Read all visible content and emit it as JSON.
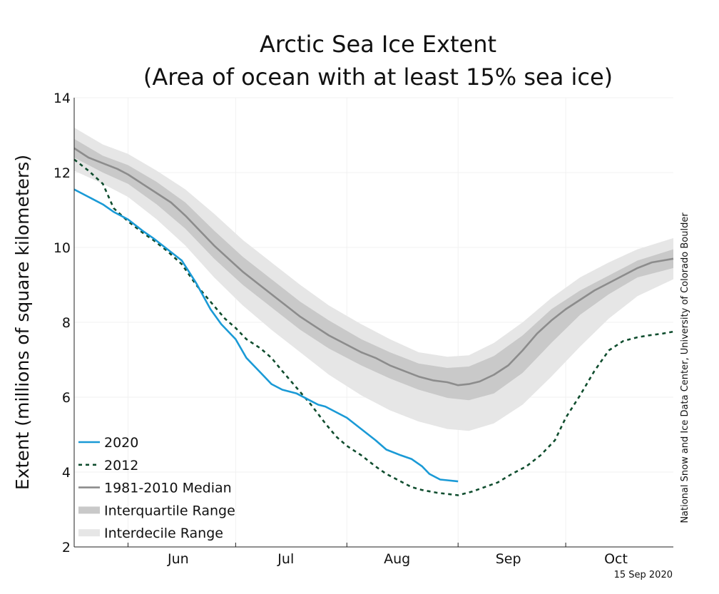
{
  "chart_data": {
    "type": "line",
    "title": "Arctic Sea Ice Extent",
    "subtitle": "(Area of ocean with at least 15% sea ice)",
    "ylabel": "Extent (millions of square kilometers)",
    "xlabel": "",
    "ylim": [
      2,
      14
    ],
    "yticks": [
      "2",
      "4",
      "6",
      "8",
      "10",
      "12",
      "14"
    ],
    "xlim": [
      "2020-05-17",
      "2020-10-31"
    ],
    "xticks": [
      "Jun",
      "Jul",
      "Aug",
      "Sep",
      "Oct"
    ],
    "grid": true,
    "legend_position": "bottom-left",
    "credit": "National Snow and Ice Data Center, University of Colorado Boulder",
    "date_stamp": "15 Sep 2020",
    "series": [
      {
        "name": "2020",
        "style": "solid",
        "color": "#1a9ad6",
        "x": [
          "2020-05-17",
          "2020-05-21",
          "2020-05-25",
          "2020-05-28",
          "2020-06-01",
          "2020-06-05",
          "2020-06-08",
          "2020-06-12",
          "2020-06-16",
          "2020-06-20",
          "2020-06-24",
          "2020-06-27",
          "2020-07-01",
          "2020-07-04",
          "2020-07-08",
          "2020-07-11",
          "2020-07-14",
          "2020-07-18",
          "2020-07-22",
          "2020-07-24",
          "2020-07-26",
          "2020-07-29",
          "2020-08-01",
          "2020-08-05",
          "2020-08-09",
          "2020-08-12",
          "2020-08-16",
          "2020-08-19",
          "2020-08-22",
          "2020-08-24",
          "2020-08-27",
          "2020-08-29",
          "2020-09-01"
        ],
        "y": [
          11.55,
          11.35,
          11.15,
          10.95,
          10.75,
          10.45,
          10.25,
          9.95,
          9.65,
          9.05,
          8.35,
          7.95,
          7.55,
          7.05,
          6.65,
          6.35,
          6.2,
          6.1,
          5.9,
          5.8,
          5.75,
          5.6,
          5.45,
          5.15,
          4.85,
          4.6,
          4.45,
          4.35,
          4.15,
          3.95,
          3.8,
          3.78,
          3.75
        ]
      },
      {
        "name": "2012",
        "style": "dashed",
        "color": "#0f4d2e",
        "x": [
          "2020-05-17",
          "2020-05-21",
          "2020-05-25",
          "2020-05-28",
          "2020-06-01",
          "2020-06-05",
          "2020-06-08",
          "2020-06-12",
          "2020-06-16",
          "2020-06-20",
          "2020-06-24",
          "2020-06-28",
          "2020-07-01",
          "2020-07-04",
          "2020-07-08",
          "2020-07-11",
          "2020-07-14",
          "2020-07-18",
          "2020-07-22",
          "2020-07-26",
          "2020-07-29",
          "2020-08-01",
          "2020-08-05",
          "2020-08-09",
          "2020-08-12",
          "2020-08-16",
          "2020-08-19",
          "2020-08-22",
          "2020-08-26",
          "2020-09-01",
          "2020-09-05",
          "2020-09-09",
          "2020-09-12",
          "2020-09-16",
          "2020-09-20",
          "2020-09-24",
          "2020-09-28",
          "2020-10-01",
          "2020-10-05",
          "2020-10-09",
          "2020-10-13",
          "2020-10-17",
          "2020-10-21",
          "2020-10-24",
          "2020-10-28",
          "2020-10-31"
        ],
        "y": [
          12.35,
          12.05,
          11.7,
          11.05,
          10.7,
          10.4,
          10.2,
          9.9,
          9.55,
          9.0,
          8.55,
          8.1,
          7.85,
          7.55,
          7.3,
          7.05,
          6.7,
          6.25,
          5.8,
          5.3,
          4.95,
          4.7,
          4.45,
          4.15,
          3.95,
          3.75,
          3.6,
          3.52,
          3.45,
          3.38,
          3.48,
          3.62,
          3.72,
          3.95,
          4.15,
          4.45,
          4.85,
          5.45,
          6.05,
          6.7,
          7.25,
          7.5,
          7.6,
          7.65,
          7.7,
          7.75
        ]
      },
      {
        "name": "1981-2010 Median",
        "style": "solid",
        "color": "#8c8c8c",
        "x": [
          "2020-05-17",
          "2020-05-21",
          "2020-05-25",
          "2020-05-29",
          "2020-06-01",
          "2020-06-05",
          "2020-06-09",
          "2020-06-13",
          "2020-06-17",
          "2020-06-21",
          "2020-06-25",
          "2020-06-29",
          "2020-07-03",
          "2020-07-07",
          "2020-07-11",
          "2020-07-15",
          "2020-07-19",
          "2020-07-23",
          "2020-07-27",
          "2020-08-01",
          "2020-08-05",
          "2020-08-09",
          "2020-08-13",
          "2020-08-17",
          "2020-08-21",
          "2020-08-25",
          "2020-08-29",
          "2020-09-01",
          "2020-09-04",
          "2020-09-07",
          "2020-09-11",
          "2020-09-15",
          "2020-09-19",
          "2020-09-23",
          "2020-09-27",
          "2020-10-01",
          "2020-10-05",
          "2020-10-09",
          "2020-10-13",
          "2020-10-17",
          "2020-10-21",
          "2020-10-25",
          "2020-10-31"
        ],
        "y": [
          12.65,
          12.4,
          12.25,
          12.1,
          11.95,
          11.7,
          11.45,
          11.2,
          10.85,
          10.45,
          10.05,
          9.7,
          9.35,
          9.05,
          8.75,
          8.45,
          8.15,
          7.9,
          7.65,
          7.4,
          7.2,
          7.05,
          6.85,
          6.7,
          6.55,
          6.45,
          6.4,
          6.32,
          6.35,
          6.42,
          6.6,
          6.85,
          7.25,
          7.7,
          8.05,
          8.35,
          8.6,
          8.85,
          9.05,
          9.25,
          9.45,
          9.6,
          9.7
        ]
      }
    ],
    "bands": [
      {
        "name": "Interquartile Range",
        "color": "#c9c9c9",
        "x": [
          "2020-05-17",
          "2020-05-25",
          "2020-06-01",
          "2020-06-09",
          "2020-06-17",
          "2020-06-25",
          "2020-07-03",
          "2020-07-11",
          "2020-07-19",
          "2020-07-27",
          "2020-08-05",
          "2020-08-13",
          "2020-08-21",
          "2020-08-29",
          "2020-09-04",
          "2020-09-11",
          "2020-09-19",
          "2020-09-27",
          "2020-10-05",
          "2020-10-13",
          "2020-10-21",
          "2020-10-31"
        ],
        "low": [
          12.4,
          12.0,
          11.7,
          11.15,
          10.5,
          9.7,
          9.0,
          8.4,
          7.8,
          7.3,
          6.85,
          6.5,
          6.2,
          5.98,
          5.92,
          6.1,
          6.65,
          7.45,
          8.2,
          8.75,
          9.2,
          9.45
        ],
        "high": [
          12.9,
          12.45,
          12.2,
          11.75,
          11.2,
          10.45,
          9.75,
          9.15,
          8.55,
          8.05,
          7.55,
          7.2,
          6.9,
          6.78,
          6.82,
          7.1,
          7.65,
          8.35,
          8.85,
          9.25,
          9.65,
          9.95
        ]
      },
      {
        "name": "Interdecile Range",
        "color": "#e6e6e6",
        "x": [
          "2020-05-17",
          "2020-05-25",
          "2020-06-01",
          "2020-06-09",
          "2020-06-17",
          "2020-06-25",
          "2020-07-03",
          "2020-07-11",
          "2020-07-19",
          "2020-07-27",
          "2020-08-05",
          "2020-08-13",
          "2020-08-21",
          "2020-08-29",
          "2020-09-04",
          "2020-09-11",
          "2020-09-19",
          "2020-09-27",
          "2020-10-05",
          "2020-10-13",
          "2020-10-21",
          "2020-10-31"
        ],
        "low": [
          12.05,
          11.7,
          11.35,
          10.75,
          10.05,
          9.2,
          8.45,
          7.8,
          7.2,
          6.6,
          6.05,
          5.65,
          5.35,
          5.15,
          5.1,
          5.3,
          5.8,
          6.55,
          7.35,
          8.1,
          8.7,
          9.15
        ],
        "high": [
          13.2,
          12.75,
          12.5,
          12.05,
          11.55,
          10.9,
          10.2,
          9.6,
          9.0,
          8.45,
          7.95,
          7.55,
          7.2,
          7.08,
          7.12,
          7.45,
          8.0,
          8.65,
          9.2,
          9.6,
          9.95,
          10.25
        ]
      }
    ]
  }
}
